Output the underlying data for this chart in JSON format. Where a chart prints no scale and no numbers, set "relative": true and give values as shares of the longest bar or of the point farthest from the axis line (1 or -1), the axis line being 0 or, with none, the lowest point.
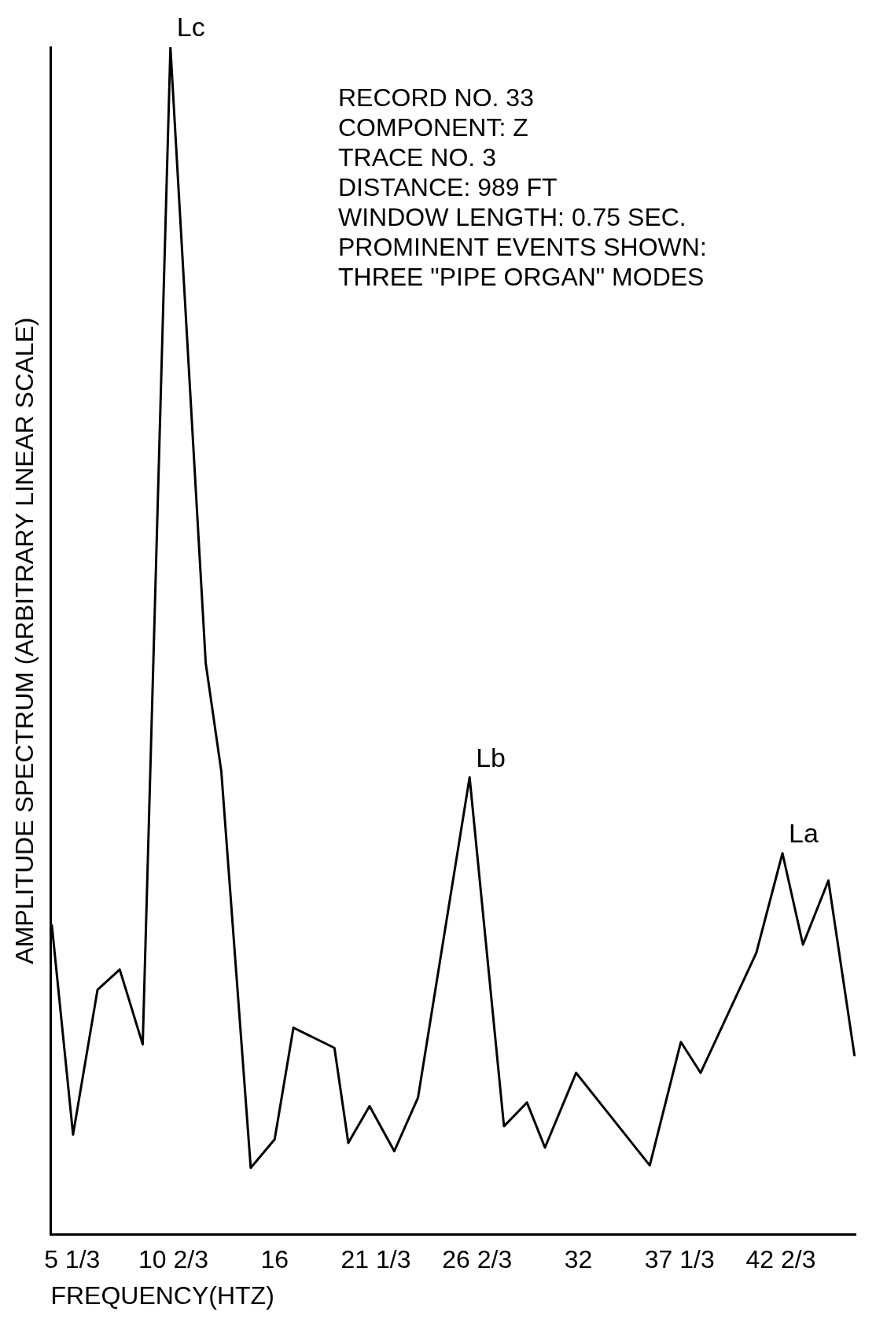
{
  "chart_data": {
    "type": "line",
    "xlabel": "FREQUENCY(HTZ)",
    "ylabel": "AMPLITUDE SPECTRUM (ARBITRARY LINEAR SCALE)",
    "relative": true,
    "color": "#000000",
    "grid": false,
    "legend": false,
    "marker": "none",
    "line_style": "solid",
    "xlim": [
      4.2,
      46.6
    ],
    "xticks": [
      {
        "value": 5.333,
        "label": "5 1/3"
      },
      {
        "value": 10.667,
        "label": "10 2/3"
      },
      16,
      {
        "value": 21.333,
        "label": "21 1/3"
      },
      {
        "value": 26.667,
        "label": "26 2/3"
      },
      32,
      {
        "value": 37.333,
        "label": "37 1/3"
      },
      {
        "value": 42.667,
        "label": "42 2/3"
      }
    ],
    "x": [
      4.26,
      5.38,
      6.67,
      7.84,
      9.05,
      10.51,
      12.37,
      13.19,
      14.74,
      16.0,
      16.99,
      19.15,
      19.88,
      21.0,
      22.3,
      23.55,
      26.27,
      28.08,
      29.29,
      30.24,
      31.88,
      35.76,
      37.4,
      38.44,
      41.37,
      42.75,
      43.83,
      45.17,
      46.55
    ],
    "values": [
      0.261,
      0.084,
      0.206,
      0.223,
      0.16,
      1,
      0.481,
      0.39,
      0.056,
      0.08,
      0.174,
      0.157,
      0.077,
      0.108,
      0.07,
      0.115,
      0.385,
      0.091,
      0.111,
      0.073,
      0.136,
      0.058,
      0.162,
      0.136,
      0.237,
      0.321,
      0.244,
      0.298,
      0.15
    ],
    "annotations": [
      {
        "text": "Lc",
        "x": 10.51,
        "y": 1
      },
      {
        "text": "Lb",
        "x": 26.27,
        "y": 0.385
      },
      {
        "text": "La",
        "x": 42.75,
        "y": 0.321
      },
      "RECORD NO. 33",
      "COMPONENT: Z",
      "TRACE NO. 3",
      "DISTANCE: 989 FT",
      "WINDOW LENGTH: 0.75 SEC.",
      "PROMINENT EVENTS SHOWN:",
      "THREE \"PIPE ORGAN\" MODES"
    ]
  }
}
